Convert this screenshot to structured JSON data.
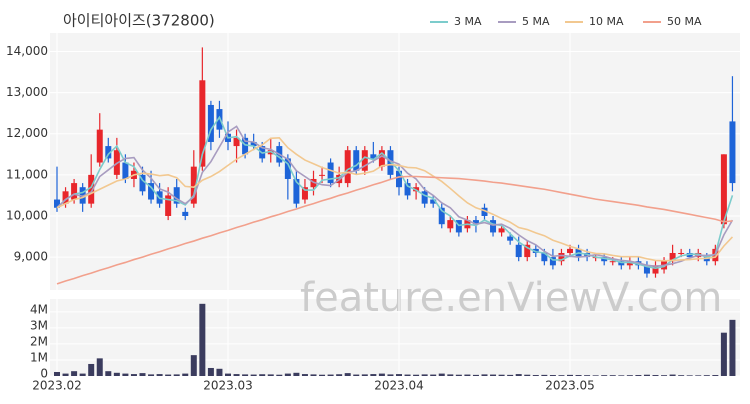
{
  "chart_data": {
    "type": "candlestick",
    "title": "아이티아이즈(372800)",
    "watermark": "feature.enViewV.com",
    "categories": [
      "2023.02",
      null,
      null,
      null,
      null,
      null,
      null,
      null,
      null,
      null,
      null,
      null,
      null,
      null,
      null,
      null,
      null,
      null,
      null,
      null,
      "2023.03",
      null,
      null,
      null,
      null,
      null,
      null,
      null,
      null,
      null,
      null,
      null,
      null,
      null,
      null,
      null,
      null,
      null,
      null,
      null,
      "2023.04",
      null,
      null,
      null,
      null,
      null,
      null,
      null,
      null,
      null,
      null,
      null,
      null,
      null,
      null,
      null,
      null,
      null,
      null,
      null,
      "2023.05",
      null,
      null,
      null,
      null,
      null,
      null,
      null,
      null,
      null,
      null,
      null,
      null,
      null,
      null,
      null,
      null,
      null,
      null,
      null
    ],
    "open": [
      10400,
      10300,
      10400,
      10700,
      10300,
      11300,
      11700,
      11000,
      11300,
      10900,
      11000,
      10800,
      10600,
      10000,
      10700,
      10100,
      10300,
      11200,
      12700,
      12600,
      12000,
      11700,
      11900,
      11800,
      11700,
      11500,
      11700,
      11400,
      10900,
      10400,
      10700,
      11000,
      11300,
      10800,
      10800,
      11600,
      11100,
      11500,
      11200,
      11600,
      11100,
      10800,
      10600,
      10600,
      10400,
      10200,
      9700,
      9900,
      9700,
      9900,
      10200,
      9900,
      9600,
      9500,
      9300,
      9000,
      9200,
      9100,
      9000,
      8900,
      9100,
      9200,
      9100,
      9000,
      9000,
      8900,
      8900,
      8800,
      8900,
      8800,
      8600,
      8700,
      8900,
      9100,
      9100,
      9000,
      9000,
      8900,
      9800,
      12300
    ],
    "high": [
      11200,
      10700,
      10900,
      10800,
      11500,
      12500,
      11900,
      11900,
      11500,
      11300,
      11200,
      11100,
      10800,
      10700,
      10900,
      10200,
      11600,
      14100,
      12800,
      12800,
      12300,
      12100,
      12000,
      12000,
      11800,
      11900,
      11800,
      11500,
      11100,
      10900,
      11100,
      11200,
      11400,
      11200,
      11700,
      11700,
      11700,
      11800,
      11700,
      11700,
      11200,
      10900,
      10800,
      10700,
      10500,
      10300,
      10000,
      9900,
      10000,
      10000,
      10300,
      10000,
      9800,
      9600,
      9500,
      9400,
      9300,
      9200,
      9200,
      9200,
      9300,
      9300,
      9200,
      9100,
      9100,
      9000,
      9000,
      9000,
      9000,
      8900,
      8900,
      9000,
      9300,
      9200,
      9200,
      9200,
      9100,
      9300,
      11500,
      13400
    ],
    "low": [
      10100,
      10200,
      10300,
      10100,
      10200,
      11200,
      11300,
      10900,
      10800,
      10700,
      10500,
      10300,
      10200,
      9900,
      10200,
      9900,
      10200,
      11100,
      11600,
      11900,
      11600,
      11300,
      11400,
      11600,
      11300,
      11300,
      11200,
      10400,
      10200,
      10300,
      10500,
      10800,
      10700,
      10700,
      10700,
      11000,
      11000,
      11300,
      11100,
      10900,
      10500,
      10400,
      10400,
      10200,
      10200,
      9700,
      9600,
      9500,
      9600,
      9600,
      9900,
      9500,
      9500,
      9300,
      8900,
      8900,
      9000,
      8800,
      8700,
      8800,
      9000,
      8900,
      8900,
      8900,
      8800,
      8800,
      8700,
      8700,
      8700,
      8500,
      8500,
      8600,
      8800,
      9000,
      9000,
      8900,
      8800,
      8800,
      9700,
      10600
    ],
    "close": [
      10200,
      10600,
      10800,
      10300,
      11000,
      12100,
      11400,
      11600,
      10900,
      11100,
      10600,
      10400,
      10300,
      10500,
      10300,
      10000,
      11200,
      13300,
      11800,
      12100,
      11800,
      11900,
      11500,
      11700,
      11400,
      11600,
      11300,
      10900,
      10300,
      10700,
      10900,
      11000,
      10800,
      11000,
      11600,
      11100,
      11600,
      11400,
      11600,
      11000,
      10700,
      10500,
      10700,
      10300,
      10300,
      9800,
      9900,
      9600,
      9900,
      9800,
      10000,
      9600,
      9700,
      9400,
      9000,
      9300,
      9100,
      8900,
      8800,
      9100,
      9200,
      9000,
      9000,
      9000,
      8900,
      8900,
      8800,
      8900,
      8800,
      8600,
      8800,
      8900,
      9100,
      9100,
      9000,
      9100,
      8900,
      9200,
      11500,
      10800
    ],
    "up_color": "#e8262b",
    "down_color": "#1e64d8",
    "ylim": [
      8200,
      14450
    ],
    "yticks": [
      {
        "value": 9000,
        "label": "9,000"
      },
      {
        "value": 10000,
        "label": "10,000"
      },
      {
        "value": 11000,
        "label": "11,000"
      },
      {
        "value": 12000,
        "label": "12,000"
      },
      {
        "value": 13000,
        "label": "13,000"
      },
      {
        "value": 14000,
        "label": "14,000"
      }
    ],
    "series": [
      {
        "name": "3 MA",
        "color": "#7ccccc",
        "values": [
          10200,
          10400,
          10530,
          10570,
          10700,
          11130,
          11500,
          11700,
          11300,
          11200,
          10870,
          10700,
          10430,
          10400,
          10370,
          10270,
          10500,
          11500,
          12100,
          12400,
          11900,
          11930,
          11730,
          11700,
          11530,
          11570,
          11430,
          11270,
          10830,
          10630,
          10630,
          10870,
          10900,
          10930,
          11130,
          11230,
          11430,
          11370,
          11530,
          11330,
          11100,
          10730,
          10630,
          10500,
          10430,
          10130,
          10000,
          9770,
          9800,
          9770,
          9900,
          9800,
          9770,
          9570,
          9370,
          9230,
          9130,
          9100,
          8930,
          8930,
          9030,
          9100,
          9070,
          9000,
          8970,
          8930,
          8870,
          8870,
          8830,
          8770,
          8730,
          8770,
          8930,
          9030,
          9070,
          9070,
          9000,
          9070,
          9870,
          10500
        ]
      },
      {
        "name": "5 MA",
        "color": "#a89cc0",
        "values": [
          10200,
          10400,
          10530,
          10480,
          10580,
          10960,
          11120,
          11280,
          11400,
          11420,
          11120,
          10920,
          10660,
          10580,
          10420,
          10300,
          10460,
          11060,
          11320,
          11680,
          12040,
          12180,
          11820,
          11800,
          11660,
          11620,
          11500,
          11380,
          11100,
          10960,
          10820,
          10760,
          10740,
          10880,
          11060,
          11100,
          11220,
          11340,
          11460,
          11340,
          11260,
          11040,
          10900,
          10640,
          10500,
          10320,
          10200,
          9980,
          9900,
          9800,
          9840,
          9780,
          9800,
          9700,
          9540,
          9400,
          9300,
          9140,
          9020,
          9040,
          9020,
          9000,
          9020,
          9060,
          9020,
          8960,
          8920,
          8900,
          8860,
          8800,
          8780,
          8800,
          8840,
          8900,
          8980,
          9040,
          9040,
          9060,
          9540,
          9900
        ]
      },
      {
        "name": "10 MA",
        "color": "#f2c890",
        "values": [
          10200,
          10300,
          10400,
          10450,
          10550,
          10650,
          10750,
          10850,
          10900,
          11000,
          11040,
          11020,
          10980,
          11000,
          10930,
          10720,
          10700,
          10870,
          10960,
          11080,
          11230,
          11380,
          11500,
          11620,
          11730,
          11890,
          11900,
          11660,
          11500,
          11360,
          11270,
          11180,
          11110,
          11040,
          11060,
          11010,
          11040,
          11090,
          11220,
          11250,
          11230,
          11180,
          11170,
          11100,
          10970,
          10840,
          10670,
          10490,
          10320,
          10200,
          10130,
          10040,
          9940,
          9850,
          9720,
          9670,
          9590,
          9520,
          9410,
          9340,
          9260,
          9200,
          9130,
          9090,
          9080,
          9040,
          9010,
          9010,
          9010,
          8960,
          8920,
          8910,
          8920,
          8930,
          8940,
          8960,
          8970,
          9000,
          9270,
          9490
        ]
      },
      {
        "name": "50 MA",
        "color": "#f2a08c",
        "values": [
          8350,
          8420,
          8480,
          8550,
          8610,
          8680,
          8740,
          8810,
          8870,
          8940,
          9000,
          9070,
          9130,
          9200,
          9260,
          9330,
          9390,
          9460,
          9520,
          9590,
          9650,
          9720,
          9780,
          9850,
          9910,
          9980,
          10040,
          10110,
          10170,
          10240,
          10300,
          10370,
          10430,
          10500,
          10560,
          10630,
          10690,
          10760,
          10820,
          10890,
          10950,
          10960,
          10960,
          10950,
          10940,
          10930,
          10920,
          10910,
          10890,
          10870,
          10850,
          10820,
          10800,
          10770,
          10740,
          10710,
          10680,
          10650,
          10610,
          10570,
          10530,
          10490,
          10450,
          10410,
          10380,
          10350,
          10320,
          10290,
          10260,
          10220,
          10190,
          10160,
          10120,
          10080,
          10040,
          10000,
          9960,
          9920,
          9860,
          9880
        ]
      }
    ],
    "volume": {
      "color": "#3b3c5e",
      "ylim": [
        0,
        4800000
      ],
      "yticks": [
        0,
        {
          "value": 1000000,
          "label": "1M"
        },
        {
          "value": 2000000,
          "label": "2M"
        },
        {
          "value": 3000000,
          "label": "3M"
        },
        {
          "value": 4000000,
          "label": "4M"
        }
      ],
      "values": [
        250000,
        150000,
        300000,
        150000,
        750000,
        1100000,
        300000,
        200000,
        150000,
        120000,
        180000,
        100000,
        120000,
        90000,
        100000,
        150000,
        1300000,
        4500000,
        500000,
        450000,
        150000,
        120000,
        100000,
        90000,
        110000,
        100000,
        80000,
        150000,
        200000,
        120000,
        100000,
        80000,
        90000,
        110000,
        180000,
        90000,
        100000,
        120000,
        150000,
        100000,
        120000,
        90000,
        80000,
        100000,
        90000,
        150000,
        100000,
        80000,
        90000,
        70000,
        100000,
        90000,
        80000,
        70000,
        120000,
        80000,
        60000,
        70000,
        60000,
        50000,
        70000,
        60000,
        50000,
        40000,
        50000,
        50000,
        40000,
        50000,
        60000,
        80000,
        60000,
        50000,
        90000,
        50000,
        40000,
        40000,
        50000,
        60000,
        2700000,
        3500000
      ]
    }
  }
}
